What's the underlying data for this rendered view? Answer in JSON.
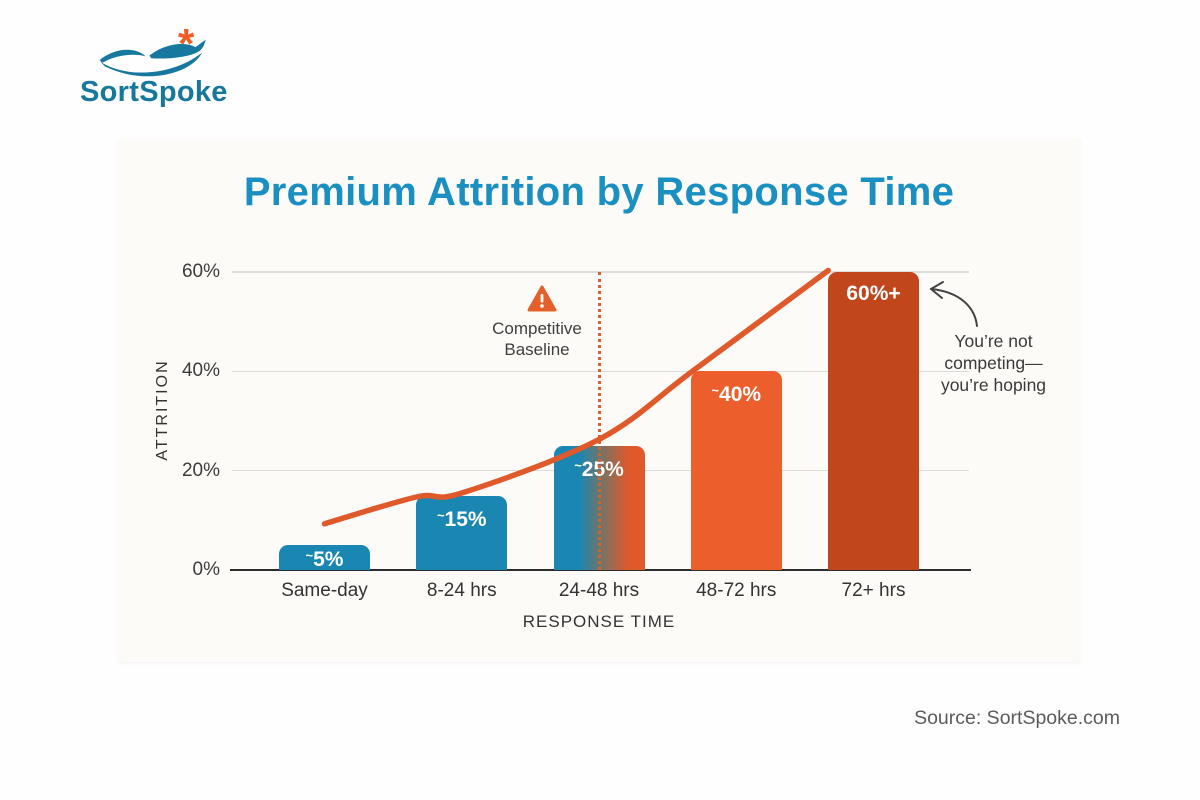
{
  "brand": {
    "logo_text": "SortSpoke",
    "logo_asterisk": "*",
    "teal": "#16789e",
    "orange": "#f15b22"
  },
  "source_line": "Source: SortSpoke.com",
  "chart_data": {
    "type": "bar",
    "title": "Premium Attrition by Response Time",
    "title_color": "#1a8fc1",
    "xlabel": "RESPONSE TIME",
    "ylabel": "ATTRITION",
    "categories": [
      "Same-day",
      "8-24 hrs",
      "24-48 hrs",
      "48-72 hrs",
      "72+ hrs"
    ],
    "values": [
      5,
      15,
      25,
      40,
      60
    ],
    "bar_labels": [
      {
        "prefix": "~",
        "value": "5%"
      },
      {
        "prefix": "~",
        "value": "15%"
      },
      {
        "prefix": "~",
        "value": "25%"
      },
      {
        "prefix": "~",
        "value": "40%"
      },
      {
        "prefix": "",
        "value": "60%+"
      }
    ],
    "bar_colors": [
      "#1a87b2",
      "#1a87b2",
      "gradient-blue-to-orange",
      "#ec5e2b",
      "#c2461c"
    ],
    "gradient": {
      "from": "#1a87b2",
      "mid": "#7b7262",
      "to": "#e0592a"
    },
    "ylim": [
      0,
      60
    ],
    "yticks": [
      {
        "value": 0,
        "label": "0%"
      },
      {
        "value": 20,
        "label": "20%"
      },
      {
        "value": 40,
        "label": "40%"
      },
      {
        "value": 60,
        "label": "60%"
      }
    ],
    "grid": true,
    "legend": null,
    "trend_line": {
      "color": "#e0592a",
      "description": "exponential rising curve from ~9% at Same-day to 60% at top-left corner of the 72+ hrs bar",
      "points_slot_pct": [
        [
          0,
          9.3
        ],
        [
          0.67,
          14.7
        ],
        [
          1,
          15.5
        ],
        [
          2,
          26.3
        ],
        [
          2.68,
          40
        ],
        [
          3.67,
          60.3
        ]
      ]
    },
    "baseline_marker": {
      "label": "Competitive Baseline",
      "at_category": "24-48 hrs",
      "style": "vertical dotted orange line",
      "icon": "warning-triangle"
    },
    "annotation": {
      "text": "You’re not\ncompeting—\nyou’re hoping",
      "arrow_to": "top of 72+ hrs bar"
    }
  }
}
